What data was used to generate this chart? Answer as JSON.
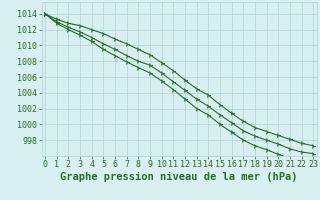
{
  "title": "Graphe pression niveau de la mer (hPa)",
  "x_values": [
    0,
    1,
    2,
    3,
    4,
    5,
    6,
    7,
    8,
    9,
    10,
    11,
    12,
    13,
    14,
    15,
    16,
    17,
    18,
    19,
    20,
    21,
    22,
    23
  ],
  "line1": [
    1014.0,
    1013.3,
    1012.8,
    1012.5,
    1012.0,
    1011.5,
    1010.8,
    1010.2,
    1009.5,
    1008.8,
    1007.8,
    1006.8,
    1005.6,
    1004.5,
    1003.7,
    1002.5,
    1001.4,
    1000.4,
    999.6,
    999.1,
    998.6,
    998.1,
    997.6,
    997.3
  ],
  "line2": [
    1014.0,
    1013.0,
    1012.3,
    1011.7,
    1011.0,
    1010.2,
    1009.5,
    1008.7,
    1008.0,
    1007.5,
    1006.5,
    1005.4,
    1004.3,
    1003.2,
    1002.3,
    1001.2,
    1000.2,
    999.2,
    998.5,
    998.0,
    997.5,
    996.9,
    996.5,
    996.3
  ],
  "line3": [
    1014.0,
    1012.8,
    1012.0,
    1011.3,
    1010.5,
    1009.5,
    1008.7,
    1007.9,
    1007.2,
    1006.5,
    1005.5,
    1004.4,
    1003.2,
    1002.0,
    1001.2,
    1000.0,
    999.0,
    998.0,
    997.3,
    996.8,
    996.2,
    995.7,
    995.3,
    995.0
  ],
  "line_color": "#2d6a2d",
  "bg_color": "#d8f0f0",
  "grid_color": "#b0d4d4",
  "label_color": "#2d6a2d",
  "ylim_min": 996,
  "ylim_max": 1015.5,
  "yticks": [
    998,
    1000,
    1002,
    1004,
    1006,
    1008,
    1010,
    1012,
    1014
  ],
  "xticks": [
    0,
    1,
    2,
    3,
    4,
    5,
    6,
    7,
    8,
    9,
    10,
    11,
    12,
    13,
    14,
    15,
    16,
    17,
    18,
    19,
    20,
    21,
    22,
    23
  ],
  "title_fontsize": 7.5,
  "tick_fontsize": 6.0
}
